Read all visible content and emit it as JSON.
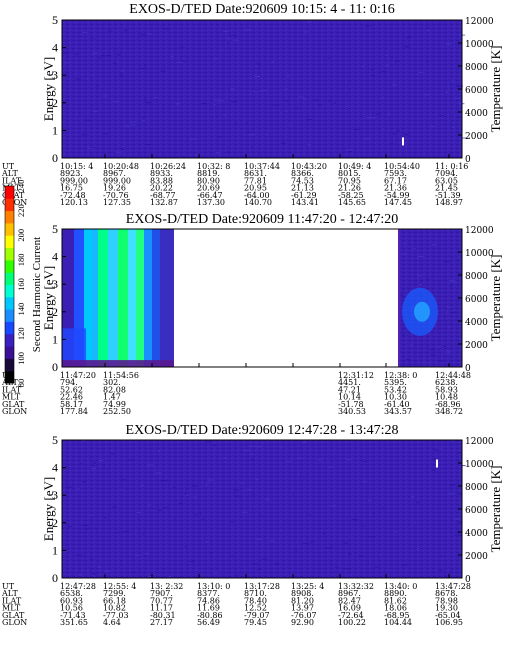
{
  "chart_data": [
    {
      "type": "heatmap",
      "title": "EXOS-D/TED   Date:920609  10:15: 4 - 11: 0:16",
      "ylabel": "Energy [eV]",
      "y2label": "Temperature [K]",
      "ylim": [
        0,
        5
      ],
      "y2lim": [
        0,
        12000
      ],
      "yticks": [
        "0",
        "1",
        "2",
        "3",
        "4",
        "5"
      ],
      "y2ticks": [
        "0",
        "2000",
        "4000",
        "6000",
        "8000",
        "10000",
        "12000"
      ],
      "background": "#3b1fb4",
      "bursts": [
        {
          "x": 0.85,
          "y": 0.12,
          "color": "#ffffff"
        }
      ],
      "eph": {
        "UT": [
          "10:15: 4",
          "10:20:48",
          "10:26:24",
          "10:32: 8",
          "10:37:44",
          "10:43:20",
          "10:49: 4",
          "10:54:40",
          "11: 0:16"
        ],
        "ALT": [
          "8923.",
          "8967.",
          "8933.",
          "8819.",
          "8631.",
          "8366.",
          "8015.",
          "7593.",
          "7094."
        ],
        "ILAT": [
          "999.00",
          "999.00",
          "83.88",
          "80.90",
          "77.81",
          "74.53",
          "70.95",
          "67.17",
          "63.05"
        ],
        "MLT": [
          "16.75",
          "19.26",
          "20.22",
          "20.69",
          "20.95",
          "21.13",
          "21.26",
          "21.36",
          "21.45"
        ],
        "GLAT": [
          "-72.48",
          "-70.76",
          "-68.77",
          "-66.47",
          "-64.00",
          "-61.29",
          "-58.25",
          "-54.99",
          "-51.39"
        ],
        "GLON": [
          "120.13",
          "127.35",
          "132.87",
          "137.30",
          "140.70",
          "143.41",
          "145.65",
          "147.45",
          "148.97"
        ]
      }
    },
    {
      "type": "heatmap",
      "title": "EXOS-D/TED   Date:920609  11:47:20 - 12:47:20",
      "ylabel": "Energy [eV]",
      "y2label": "Temperature [K]",
      "ylim": [
        0,
        5
      ],
      "y2lim": [
        0,
        12000
      ],
      "yticks": [
        "0",
        "1",
        "2",
        "3",
        "4",
        "5"
      ],
      "y2ticks": [
        "0",
        "2000",
        "4000",
        "6000",
        "8000",
        "10000",
        "12000"
      ],
      "background": "#3b1fb4",
      "gap": [
        0.28,
        0.84
      ],
      "colorbar": {
        "label": "Second Harmonic Current",
        "ticks": [
          "80",
          "100",
          "120",
          "140",
          "160",
          "180",
          "200",
          "220",
          "240"
        ],
        "colors": [
          "#000000",
          "#1a0a3a",
          "#3a1096",
          "#3b1fc0",
          "#1848ff",
          "#1a8cff",
          "#00c8ff",
          "#00ffd0",
          "#00ff78",
          "#30ff00",
          "#a0ff00",
          "#ffff00",
          "#ffc000",
          "#ff8000",
          "#ff3000",
          "#ff0000"
        ]
      },
      "eph": {
        "UT": [
          "11:47:20",
          "11:54:56",
          "",
          "",
          "",
          "",
          "12:31:12",
          "12:38: 0",
          "12:44:48"
        ],
        "ALT": [
          "794.",
          "302.",
          "",
          "",
          "",
          "",
          "4451.",
          "5395.",
          "6238."
        ],
        "ILAT": [
          "52.62",
          "82.08",
          "",
          "",
          "",
          "",
          "47.21",
          "53.42",
          "58.93"
        ],
        "MLT": [
          "22.46",
          "1.47",
          "",
          "",
          "",
          "",
          "10.14",
          "10.30",
          "10.48"
        ],
        "GLAT": [
          "58.17",
          "74.99",
          "",
          "",
          "",
          "",
          "-51.78",
          "-61.40",
          "-68.96"
        ],
        "GLON": [
          "177.84",
          "252.50",
          "",
          "",
          "",
          "",
          "340.53",
          "343.57",
          "348.72"
        ]
      }
    },
    {
      "type": "heatmap",
      "title": "EXOS-D/TED   Date:920609  12:47:28 - 13:47:28",
      "ylabel": "Energy [eV]",
      "y2label": "Temperature [K]",
      "ylim": [
        0,
        5
      ],
      "y2lim": [
        0,
        12000
      ],
      "yticks": [
        "0",
        "1",
        "2",
        "3",
        "4",
        "5"
      ],
      "y2ticks": [
        "0",
        "2000",
        "4000",
        "6000",
        "8000",
        "10000",
        "12000"
      ],
      "background": "#3b1fb4",
      "bursts": [
        {
          "x": 0.935,
          "y": 0.83,
          "color": "#ffffff"
        }
      ],
      "eph": {
        "UT": [
          "12:47:28",
          "12:55: 4",
          "13: 2:32",
          "13:10: 0",
          "13:17:28",
          "13:25: 4",
          "13:32:32",
          "13:40: 0",
          "13:47:28"
        ],
        "ALT": [
          "6538.",
          "7299.",
          "7907.",
          "8377.",
          "8710.",
          "8908.",
          "8967.",
          "8890.",
          "8678."
        ],
        "ILAT": [
          "60.93",
          "66.18",
          "70.77",
          "74.86",
          "78.40",
          "81.20",
          "82.47",
          "81.62",
          "78.98"
        ],
        "MLT": [
          "10.56",
          "10.82",
          "11.17",
          "11.69",
          "12.52",
          "13.97",
          "16.09",
          "18.06",
          "19.30"
        ],
        "GLAT": [
          "-71.43",
          "-77.03",
          "-80.31",
          "-80.86",
          "-79.07",
          "-76.07",
          "-72.64",
          "-68.95",
          "-65.04"
        ],
        "GLON": [
          "351.65",
          "4.64",
          "27.17",
          "56.49",
          "79.45",
          "92.90",
          "100.22",
          "104.44",
          "106.95"
        ]
      }
    }
  ],
  "row_labels": [
    "UT",
    "ALT",
    "ILAT",
    "MLT",
    "GLAT",
    "GLON"
  ]
}
